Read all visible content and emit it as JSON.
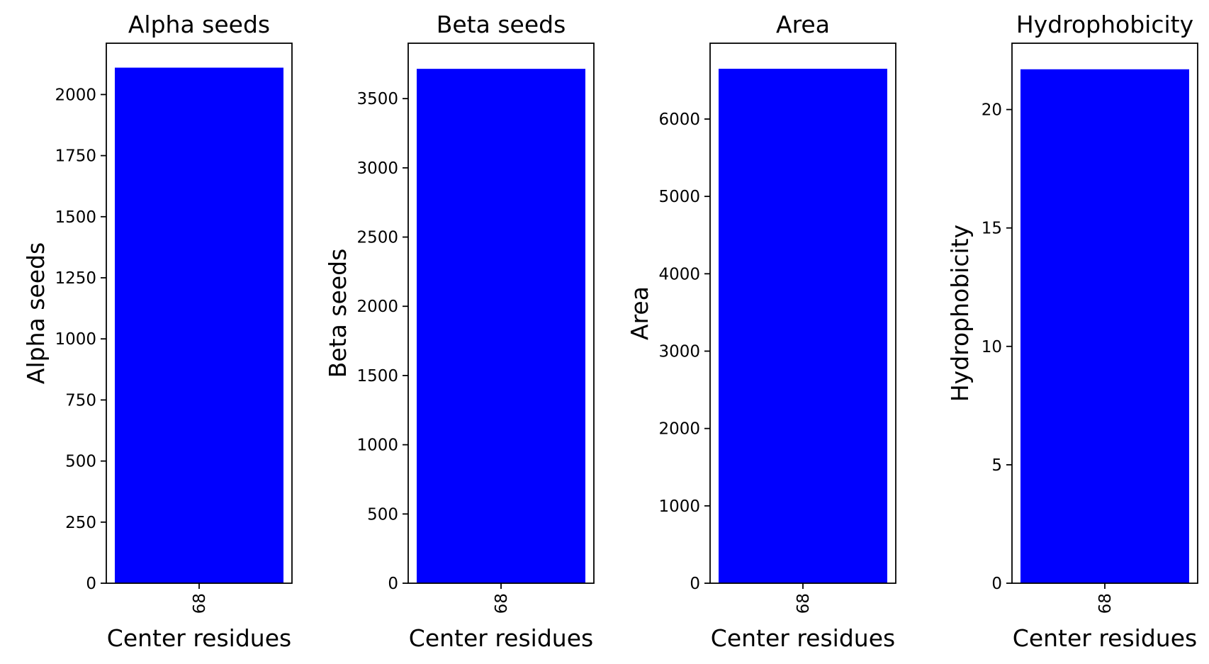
{
  "chart_data": [
    {
      "type": "bar",
      "title": "Alpha seeds",
      "xlabel": "Center residues",
      "ylabel": "Alpha seeds",
      "categories": [
        "68"
      ],
      "values": [
        2110
      ],
      "ylim": [
        0,
        2210
      ],
      "yticks": [
        0,
        250,
        500,
        750,
        1000,
        1250,
        1500,
        1750,
        2000
      ],
      "bar_color": "#0000ff",
      "grid": false
    },
    {
      "type": "bar",
      "title": "Beta seeds",
      "xlabel": "Center residues",
      "ylabel": "Beta seeds",
      "categories": [
        "68"
      ],
      "values": [
        3715
      ],
      "ylim": [
        0,
        3900
      ],
      "yticks": [
        0,
        500,
        1000,
        1500,
        2000,
        2500,
        3000,
        3500
      ],
      "bar_color": "#0000ff",
      "grid": false
    },
    {
      "type": "bar",
      "title": "Area",
      "xlabel": "Center residues",
      "ylabel": "Area",
      "categories": [
        "68"
      ],
      "values": [
        6650
      ],
      "ylim": [
        0,
        6980
      ],
      "yticks": [
        0,
        1000,
        2000,
        3000,
        4000,
        5000,
        6000
      ],
      "bar_color": "#0000ff",
      "grid": false
    },
    {
      "type": "bar",
      "title": "Hydrophobicity",
      "xlabel": "Center residues",
      "ylabel": "Hydrophobicity",
      "categories": [
        "68"
      ],
      "values": [
        21.7
      ],
      "ylim": [
        0,
        22.8
      ],
      "yticks": [
        0,
        5,
        10,
        15,
        20
      ],
      "bar_color": "#0000ff",
      "grid": false
    }
  ]
}
